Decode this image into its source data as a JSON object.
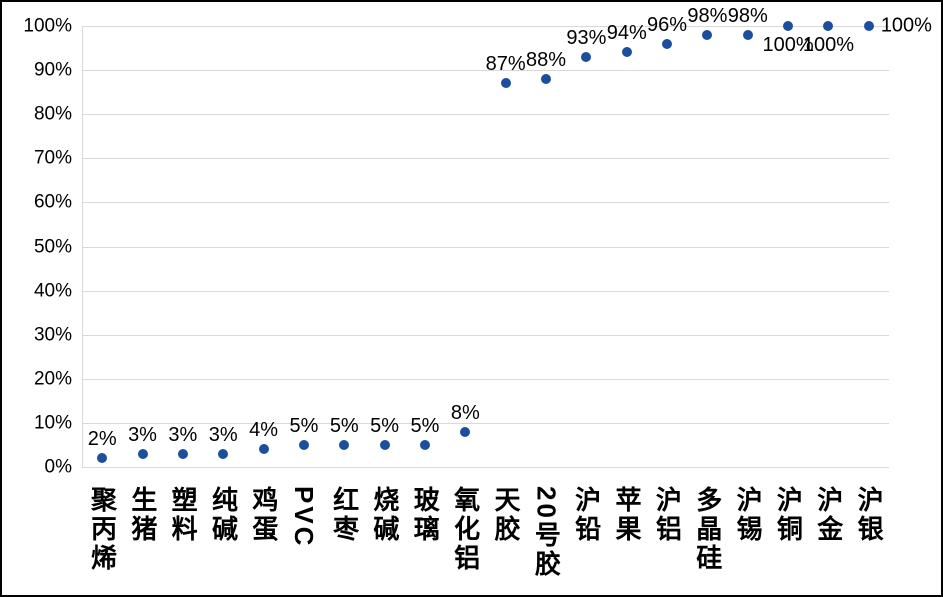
{
  "window": {
    "background_color": "#FFFFFF",
    "border_color": "#000000"
  },
  "chart_data": {
    "type": "scatter",
    "title": "",
    "legend": "none",
    "grid": "horizontal",
    "marker_color": "#1C4E9E",
    "gridline_color": "#D9D9D9",
    "text_color": "#000000",
    "ylim": [
      0,
      100
    ],
    "y_ticks": [
      "0%",
      "10%",
      "20%",
      "30%",
      "40%",
      "50%",
      "60%",
      "70%",
      "80%",
      "90%",
      "100%"
    ],
    "categories": [
      "聚丙烯",
      "生猪",
      "塑料",
      "纯碱",
      "鸡蛋",
      "PVC",
      "红枣",
      "烧碱",
      "玻璃",
      "氧化铝",
      "天胶",
      "20号胶",
      "沪铅",
      "苹果",
      "沪铝",
      "多晶硅",
      "沪锡",
      "沪铜",
      "沪金",
      "沪银"
    ],
    "values": [
      2,
      3,
      3,
      3,
      4,
      5,
      5,
      5,
      5,
      8,
      87,
      88,
      93,
      94,
      96,
      98,
      98,
      100,
      100,
      100
    ],
    "point_labels": [
      "2%",
      "3%",
      "3%",
      "3%",
      "4%",
      "5%",
      "5%",
      "5%",
      "5%",
      "8%",
      "87%",
      "88%",
      "93%",
      "94%",
      "96%",
      "98%",
      "98%",
      "100%",
      "100%",
      "100%"
    ],
    "label_positions": [
      "above",
      "above",
      "above",
      "above",
      "above",
      "above",
      "above",
      "above",
      "above",
      "above",
      "above",
      "above",
      "above",
      "above",
      "above",
      "above",
      "above",
      "below",
      "below",
      "right"
    ]
  }
}
